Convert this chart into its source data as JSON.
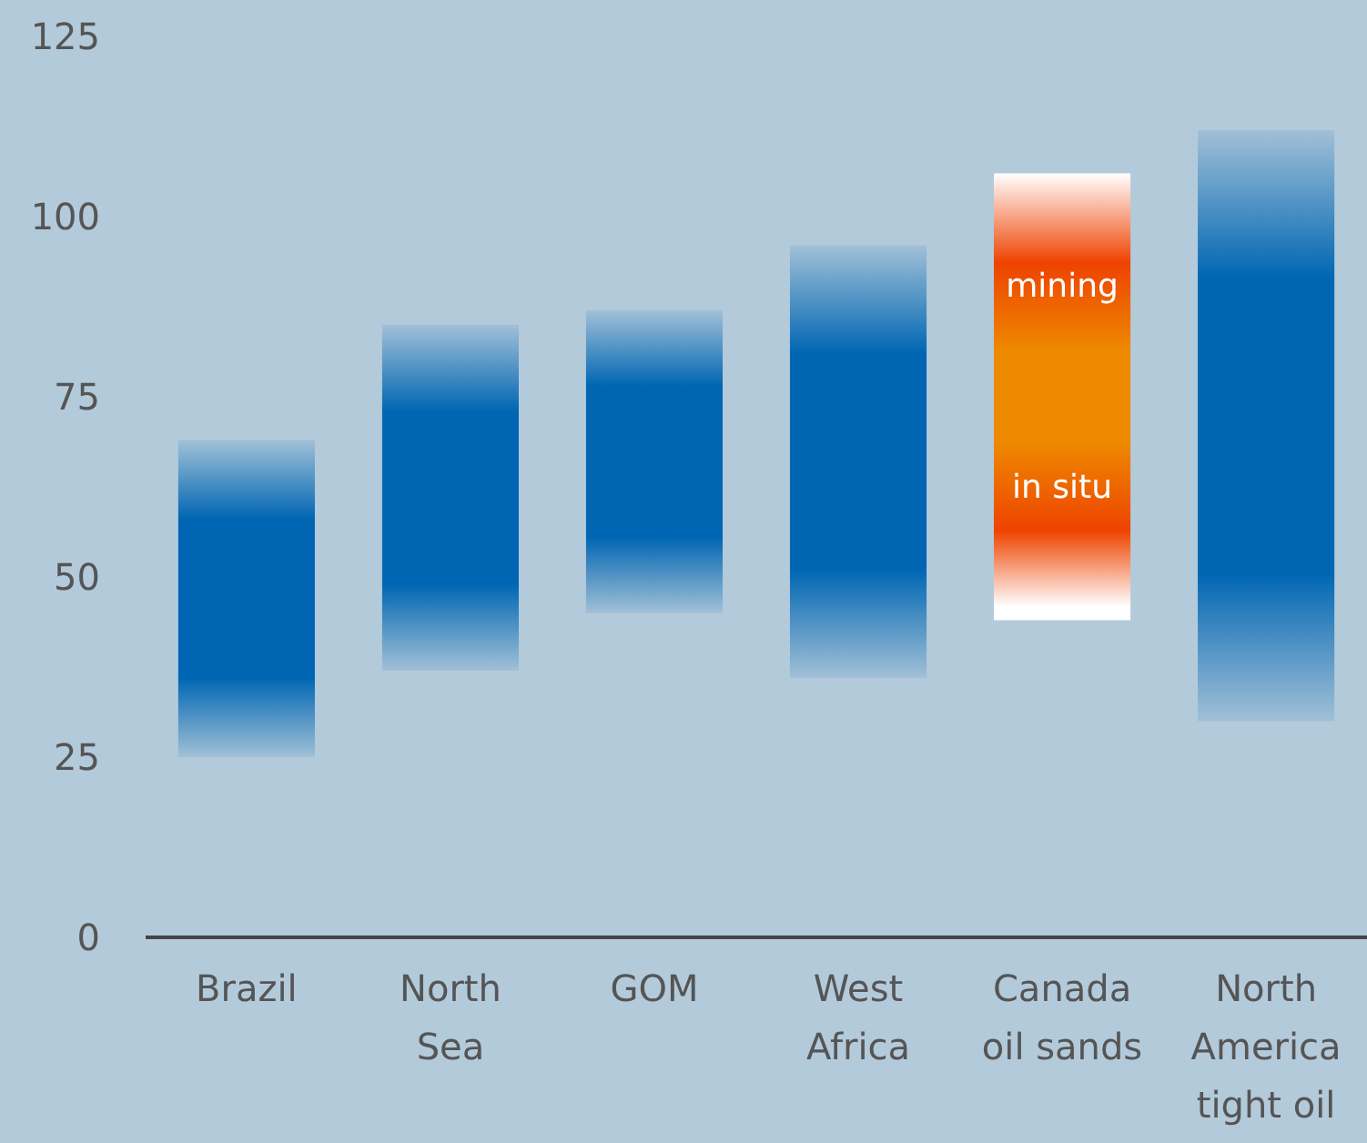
{
  "chart_data": {
    "type": "bar",
    "categories": [
      "Brazil",
      "North Sea",
      "GOM",
      "West Africa",
      "Canada oil sands",
      "North America tight oil"
    ],
    "base": [
      25,
      37,
      45,
      36,
      44,
      30
    ],
    "values": [
      44,
      48,
      42,
      60,
      62,
      82
    ],
    "colors": [
      "#0066b3",
      "#0066b3",
      "#0066b3",
      "#0066b3",
      "#ee8a00",
      "#0066b3"
    ],
    "ylim": [
      0,
      125
    ],
    "yticks": [
      0,
      25,
      50,
      75,
      100,
      125
    ],
    "grid": false,
    "annotations": [
      "mining",
      "in situ"
    ]
  }
}
